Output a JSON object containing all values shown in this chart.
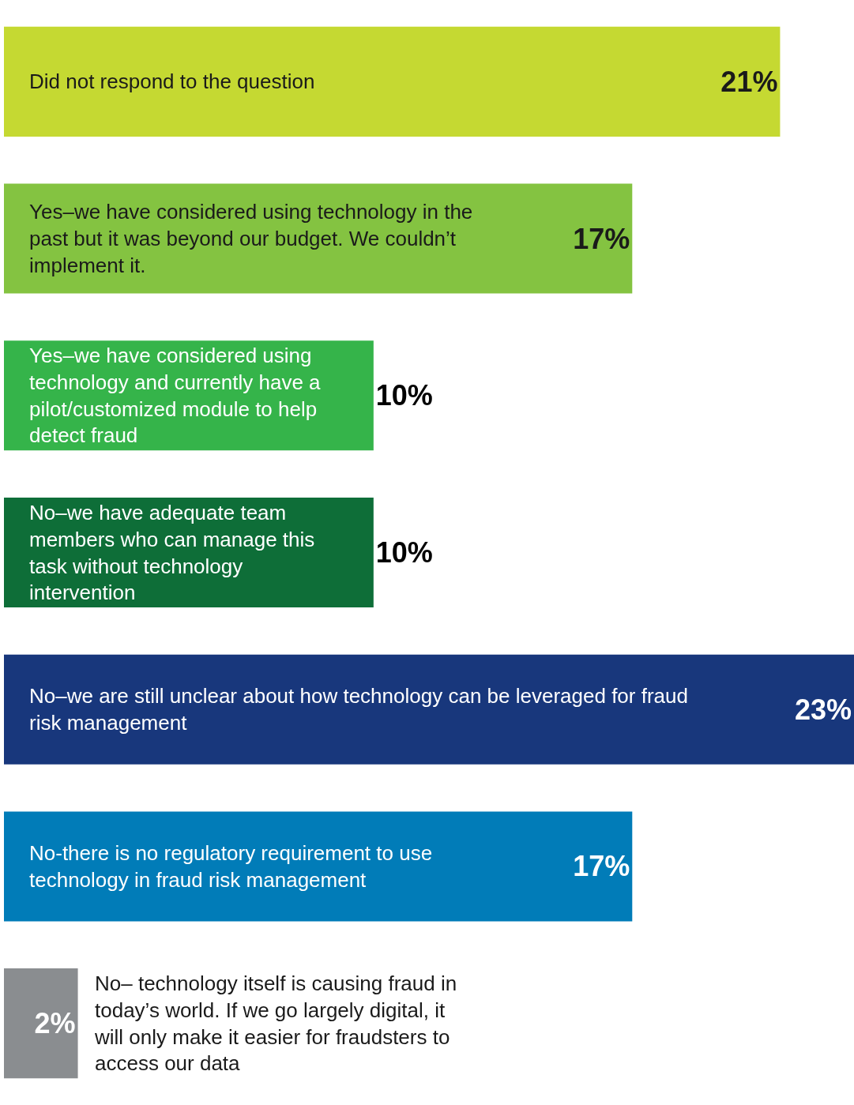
{
  "chart_data": {
    "type": "bar",
    "orientation": "horizontal",
    "categories": [
      "Did not respond to the question",
      "Yes–we have considered using technology in the past but it was beyond our budget. We couldn’t implement it.",
      "Yes–we have considered using technology and currently have a pilot/customized module to help detect fraud",
      "No–we have adequate team members who can manage this task without technology intervention",
      "No–we are still unclear about how technology can be leveraged for fraud risk management",
      "No-there is no regulatory requirement to use technology in fraud risk management",
      "No– technology itself is causing fraud in today’s world. If we go largely digital, it will only make it easier for fraudsters to access our data"
    ],
    "values": [
      21,
      17,
      10,
      10,
      23,
      17,
      2
    ],
    "value_labels": [
      "21%",
      "17%",
      "10%",
      "10%",
      "23%",
      "17%",
      "2%"
    ],
    "colors": [
      "#c5d932",
      "#84c341",
      "#35b44a",
      "#0e6e38",
      "#18377c",
      "#017cb8",
      "#8a8d90"
    ],
    "grid": false,
    "legend": false
  }
}
